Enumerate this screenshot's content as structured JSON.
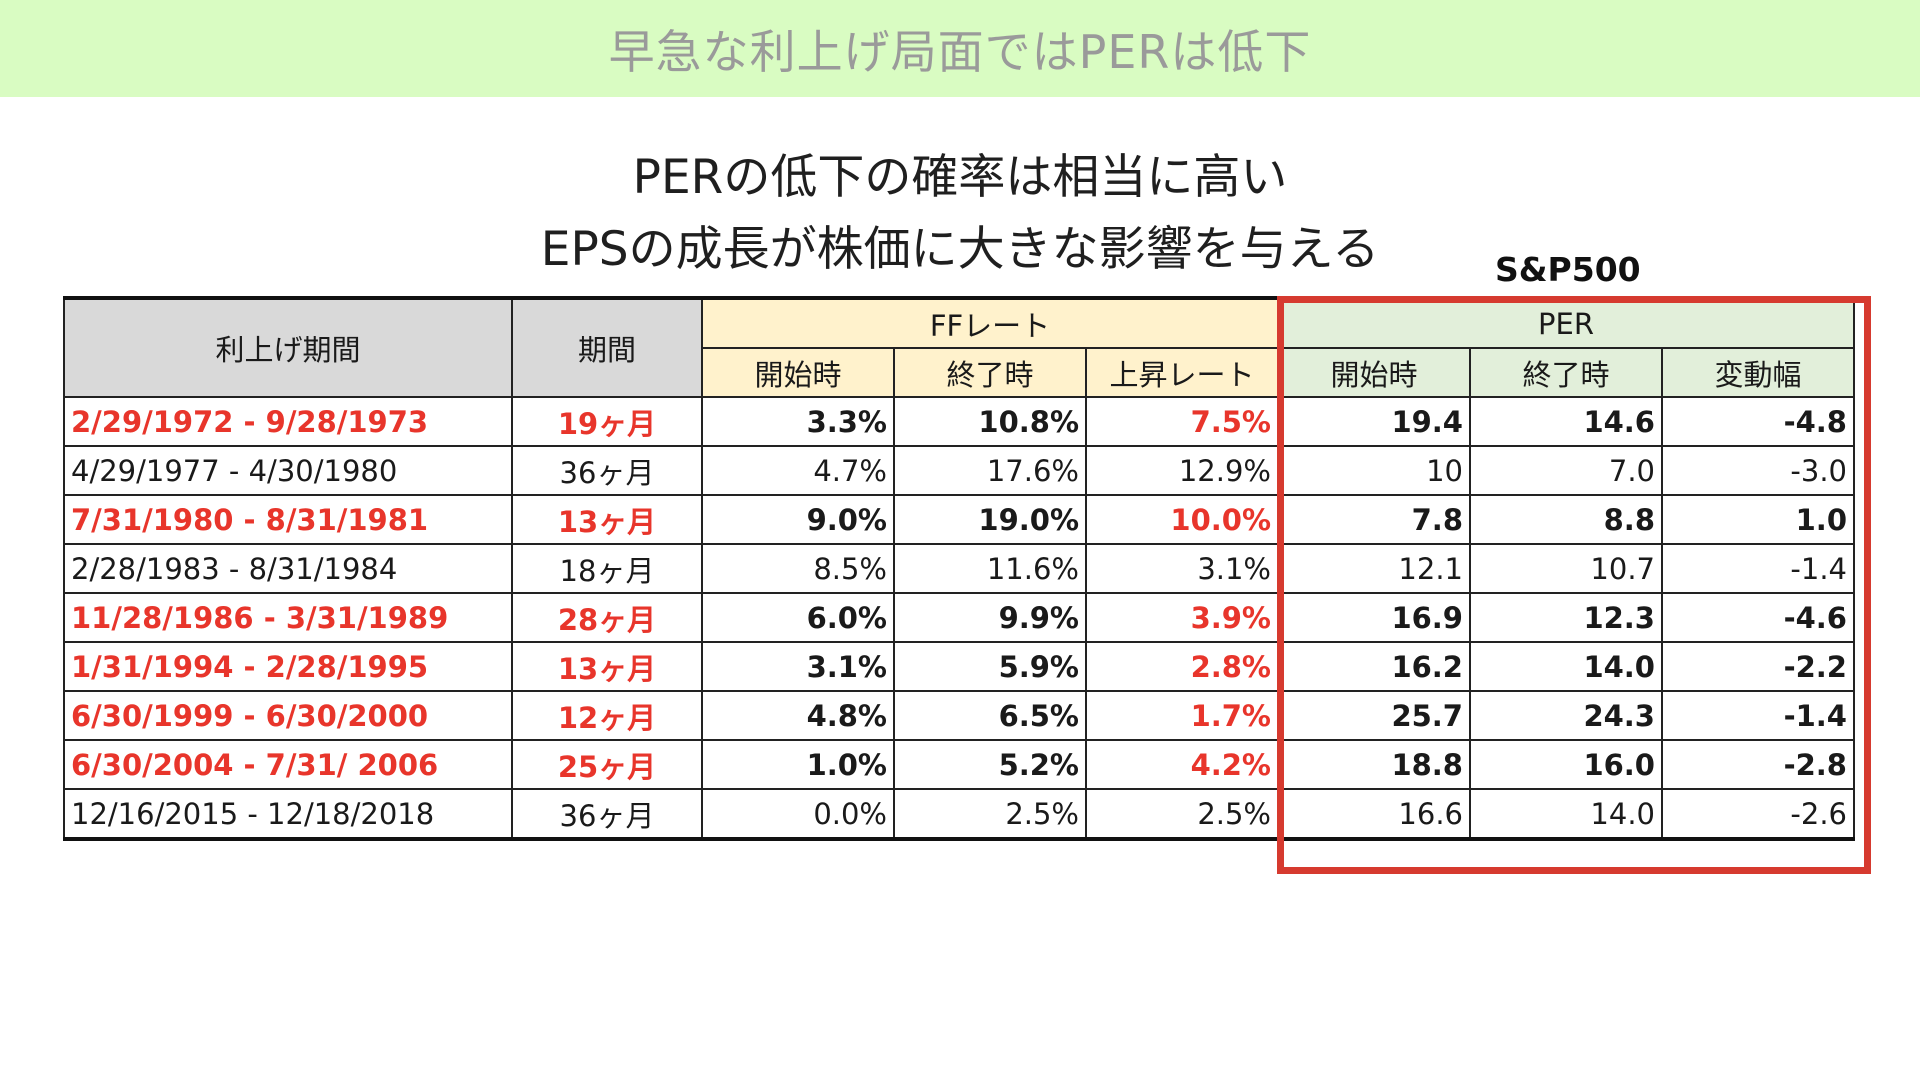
{
  "banner": {
    "title": "早急な利上げ局面ではPERは低下"
  },
  "subtitles": [
    "PERの低下の確率は相当に高い",
    "EPSの成長が株価に大きな影響を与える"
  ],
  "sp500_label": "S&P500",
  "table": {
    "group_headers": {
      "period_range": "利上げ期間",
      "duration": "期間",
      "ff_rate": "FFレート",
      "per": "PER"
    },
    "sub_headers": {
      "ff_start": "開始時",
      "ff_end": "終了時",
      "ff_rise": "上昇レート",
      "per_start": "開始時",
      "per_end": "終了時",
      "per_change": "変動幅"
    },
    "rows": [
      {
        "highlight": true,
        "period": "2/29/1972 - 9/28/1973",
        "duration": "19ヶ月",
        "ff_start": "3.3%",
        "ff_end": "10.8%",
        "ff_rise": "7.5%",
        "per_start": "19.4",
        "per_end": "14.6",
        "per_change": "-4.8"
      },
      {
        "highlight": false,
        "period": "4/29/1977 - 4/30/1980",
        "duration": "36ヶ月",
        "ff_start": "4.7%",
        "ff_end": "17.6%",
        "ff_rise": "12.9%",
        "per_start": "10",
        "per_end": "7.0",
        "per_change": "-3.0"
      },
      {
        "highlight": true,
        "period": "7/31/1980 - 8/31/1981",
        "duration": "13ヶ月",
        "ff_start": "9.0%",
        "ff_end": "19.0%",
        "ff_rise": "10.0%",
        "per_start": "7.8",
        "per_end": "8.8",
        "per_change": "1.0"
      },
      {
        "highlight": false,
        "period": "2/28/1983 - 8/31/1984",
        "duration": "18ヶ月",
        "ff_start": "8.5%",
        "ff_end": "11.6%",
        "ff_rise": "3.1%",
        "per_start": "12.1",
        "per_end": "10.7",
        "per_change": "-1.4"
      },
      {
        "highlight": true,
        "period": "11/28/1986 - 3/31/1989",
        "duration": "28ヶ月",
        "ff_start": "6.0%",
        "ff_end": "9.9%",
        "ff_rise": "3.9%",
        "per_start": "16.9",
        "per_end": "12.3",
        "per_change": "-4.6"
      },
      {
        "highlight": true,
        "period": "1/31/1994 - 2/28/1995",
        "duration": "13ヶ月",
        "ff_start": "3.1%",
        "ff_end": "5.9%",
        "ff_rise": "2.8%",
        "per_start": "16.2",
        "per_end": "14.0",
        "per_change": "-2.2"
      },
      {
        "highlight": true,
        "period": "6/30/1999 - 6/30/2000",
        "duration": "12ヶ月",
        "ff_start": "4.8%",
        "ff_end": "6.5%",
        "ff_rise": "1.7%",
        "per_start": "25.7",
        "per_end": "24.3",
        "per_change": "-1.4"
      },
      {
        "highlight": true,
        "period": "6/30/2004 - 7/31/ 2006",
        "duration": "25ヶ月",
        "ff_start": "1.0%",
        "ff_end": "5.2%",
        "ff_rise": "4.2%",
        "per_start": "18.8",
        "per_end": "16.0",
        "per_change": "-2.8"
      },
      {
        "highlight": false,
        "period": "12/16/2015 - 12/18/2018",
        "duration": "36ヶ月",
        "ff_start": "0.0%",
        "ff_end": "2.5%",
        "ff_rise": "2.5%",
        "per_start": "16.6",
        "per_end": "14.0",
        "per_change": "-2.6"
      }
    ]
  },
  "colors": {
    "banner_bg": "#d9fcc2",
    "highlight_red": "#e8352b",
    "per_box_border": "#d63a2f",
    "header_grey": "#d9d9d9",
    "header_yellow": "#fff2cc",
    "header_green": "#e2efda"
  }
}
